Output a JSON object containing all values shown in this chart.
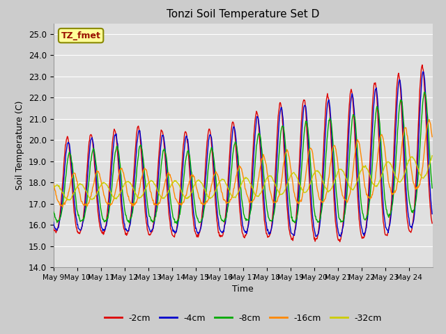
{
  "title": "Tonzi Soil Temperature Set D",
  "xlabel": "Time",
  "ylabel": "Soil Temperature (C)",
  "ylim": [
    14.0,
    25.5
  ],
  "yticks": [
    14.0,
    15.0,
    16.0,
    17.0,
    18.0,
    19.0,
    20.0,
    21.0,
    22.0,
    23.0,
    24.0,
    25.0
  ],
  "series_colors": {
    "-2cm": "#dd0000",
    "-4cm": "#0000cc",
    "-8cm": "#00aa00",
    "-16cm": "#ff8800",
    "-32cm": "#cccc00"
  },
  "legend_label": "TZ_fmet",
  "legend_box_color": "#ffff99",
  "legend_box_edge": "#888800",
  "start_day": 9,
  "tick_labels": [
    "May 9",
    "May 10",
    "May 11",
    "May 12",
    "May 13",
    "May 14",
    "May 15",
    "May 16",
    "May 17",
    "May 18",
    "May 19",
    "May 20",
    "May 21",
    "May 22",
    "May 23",
    "May 24"
  ]
}
